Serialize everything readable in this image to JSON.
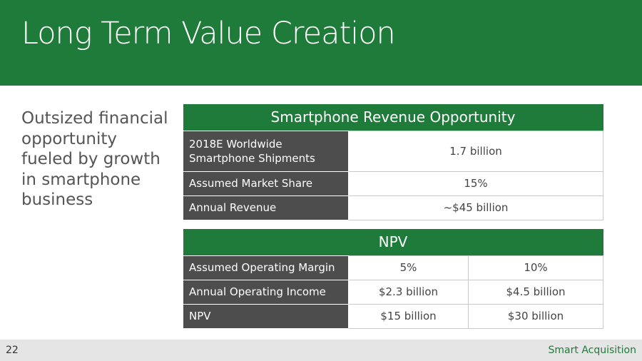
{
  "slide": {
    "title": "Long Term Value Creation",
    "lead_text": "Outsized financial opportunity fueled by growth in smartphone business",
    "page_number": "22",
    "brand_label": "Smart Acquisition",
    "accent_color": "#1f7b3a"
  },
  "revenue_table": {
    "caption": "Smartphone Revenue Opportunity",
    "rows": [
      {
        "label": "2018E Worldwide Smartphone Shipments",
        "value": "1.7 billion"
      },
      {
        "label": "Assumed Market Share",
        "value": "15%"
      },
      {
        "label": "Annual Revenue",
        "value": "~$45 billion"
      }
    ]
  },
  "npv_table": {
    "caption": "NPV",
    "rows": [
      {
        "label": "Assumed Operating Margin",
        "values": [
          "5%",
          "10%"
        ]
      },
      {
        "label": "Annual Operating Income",
        "values": [
          "$2.3 billion",
          "$4.5 billion"
        ]
      },
      {
        "label": "NPV",
        "values": [
          "$15 billion",
          "$30 billion"
        ]
      }
    ]
  }
}
